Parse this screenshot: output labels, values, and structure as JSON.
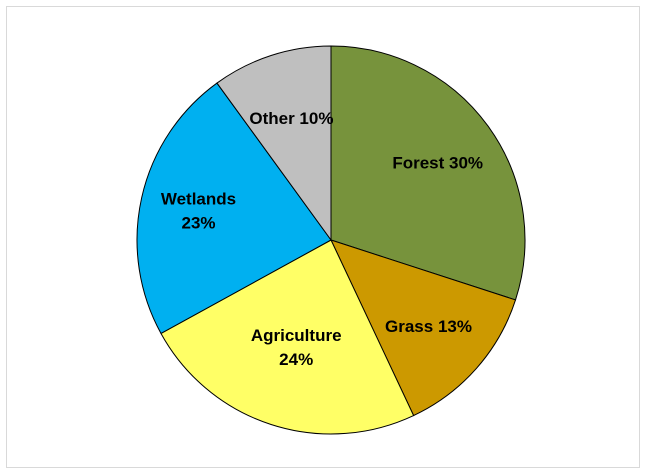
{
  "chart_data": {
    "type": "pie",
    "title": "",
    "slices": [
      {
        "name": "Forest",
        "value": 30,
        "label_lines": [
          "Forest 30%"
        ],
        "color": "#77933C"
      },
      {
        "name": "Grass",
        "value": 13,
        "label_lines": [
          "Grass 13%"
        ],
        "color": "#CC9900"
      },
      {
        "name": "Agriculture",
        "value": 24,
        "label_lines": [
          "Agriculture",
          "24%"
        ],
        "color": "#FFFF66"
      },
      {
        "name": "Wetlands",
        "value": 23,
        "label_lines": [
          "Wetlands",
          "23%"
        ],
        "color": "#00B0F0"
      },
      {
        "name": "Other",
        "value": 10,
        "label_lines": [
          "Other 10%"
        ],
        "color": "#BFBFBF"
      }
    ],
    "start_angle": "12 o'clock",
    "direction": "clockwise",
    "legend": "none",
    "slice_border_color": "#000000"
  }
}
